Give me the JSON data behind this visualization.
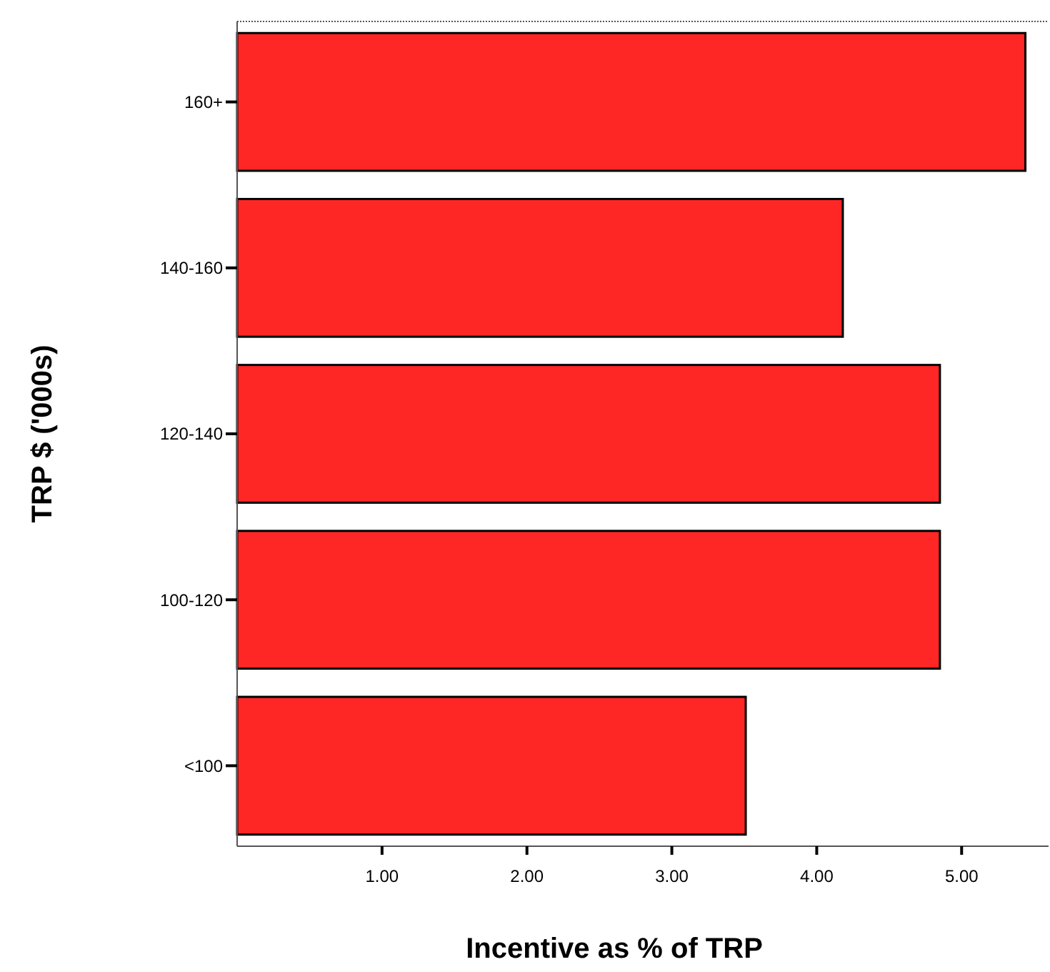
{
  "chart_data": {
    "type": "bar",
    "orientation": "horizontal",
    "categories": [
      "160+",
      "140-160",
      "120-140",
      "100-120",
      "<100"
    ],
    "values": [
      5.44,
      4.18,
      4.85,
      4.85,
      3.51
    ],
    "color": "#ff2626",
    "xlim": [
      0,
      5.6
    ],
    "xticks": [
      {
        "value": 1,
        "label": "1.00"
      },
      {
        "value": 2,
        "label": "2.00"
      },
      {
        "value": 3,
        "label": "3.00"
      },
      {
        "value": 4,
        "label": "4.00"
      },
      {
        "value": 5,
        "label": "5.00"
      }
    ],
    "xlabel": "Incentive as % of TRP",
    "ylabel": "TRP $ ('000s)",
    "grid": false
  }
}
